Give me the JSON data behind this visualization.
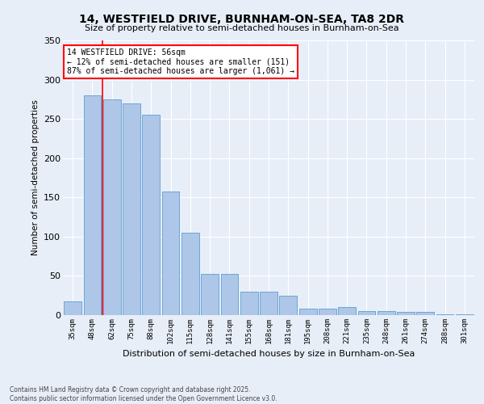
{
  "title": "14, WESTFIELD DRIVE, BURNHAM-ON-SEA, TA8 2DR",
  "subtitle": "Size of property relative to semi-detached houses in Burnham-on-Sea",
  "xlabel": "Distribution of semi-detached houses by size in Burnham-on-Sea",
  "ylabel": "Number of semi-detached properties",
  "categories": [
    "35sqm",
    "48sqm",
    "62sqm",
    "75sqm",
    "88sqm",
    "102sqm",
    "115sqm",
    "128sqm",
    "141sqm",
    "155sqm",
    "168sqm",
    "181sqm",
    "195sqm",
    "208sqm",
    "221sqm",
    "235sqm",
    "248sqm",
    "261sqm",
    "274sqm",
    "288sqm",
    "301sqm"
  ],
  "values": [
    18,
    280,
    275,
    270,
    255,
    157,
    105,
    53,
    52,
    30,
    30,
    25,
    8,
    8,
    10,
    5,
    5,
    4,
    4,
    1,
    1
  ],
  "bar_color": "#aec6e8",
  "bar_edge_color": "#5a9fd4",
  "background_color": "#e8eef8",
  "grid_color": "#ffffff",
  "annotation_title": "14 WESTFIELD DRIVE: 56sqm",
  "annotation_line1": "← 12% of semi-detached houses are smaller (151)",
  "annotation_line2": "87% of semi-detached houses are larger (1,061) →",
  "vline_x_pos": 1.5,
  "ylim": [
    0,
    350
  ],
  "yticks": [
    0,
    50,
    100,
    150,
    200,
    250,
    300,
    350
  ],
  "footer_line1": "Contains HM Land Registry data © Crown copyright and database right 2025.",
  "footer_line2": "Contains public sector information licensed under the Open Government Licence v3.0."
}
